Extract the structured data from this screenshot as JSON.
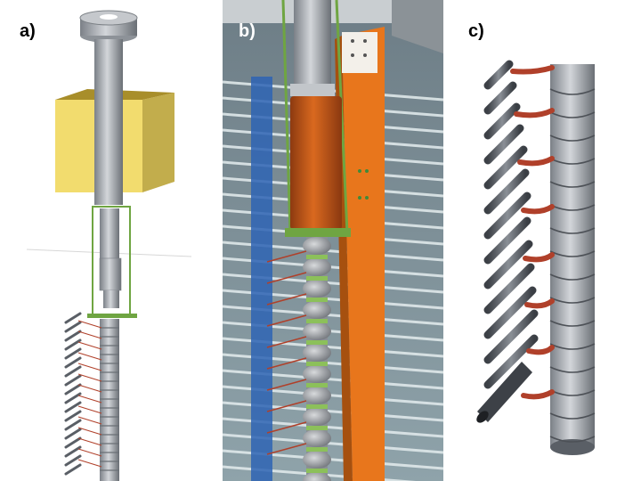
{
  "panels": [
    {
      "label": "a)"
    },
    {
      "label": "b)"
    },
    {
      "label": "c)"
    }
  ],
  "colors": {
    "steel": "#a7acb2",
    "steel_dark": "#6f747a",
    "yellow_block": "#f2dc6e",
    "copper": "#c4561c",
    "orange_beam": "#e8761c",
    "green_frame": "#6fa542",
    "blue_strip": "#2e64b4",
    "strap": "#b0402a",
    "fin": "#5a5f66"
  }
}
